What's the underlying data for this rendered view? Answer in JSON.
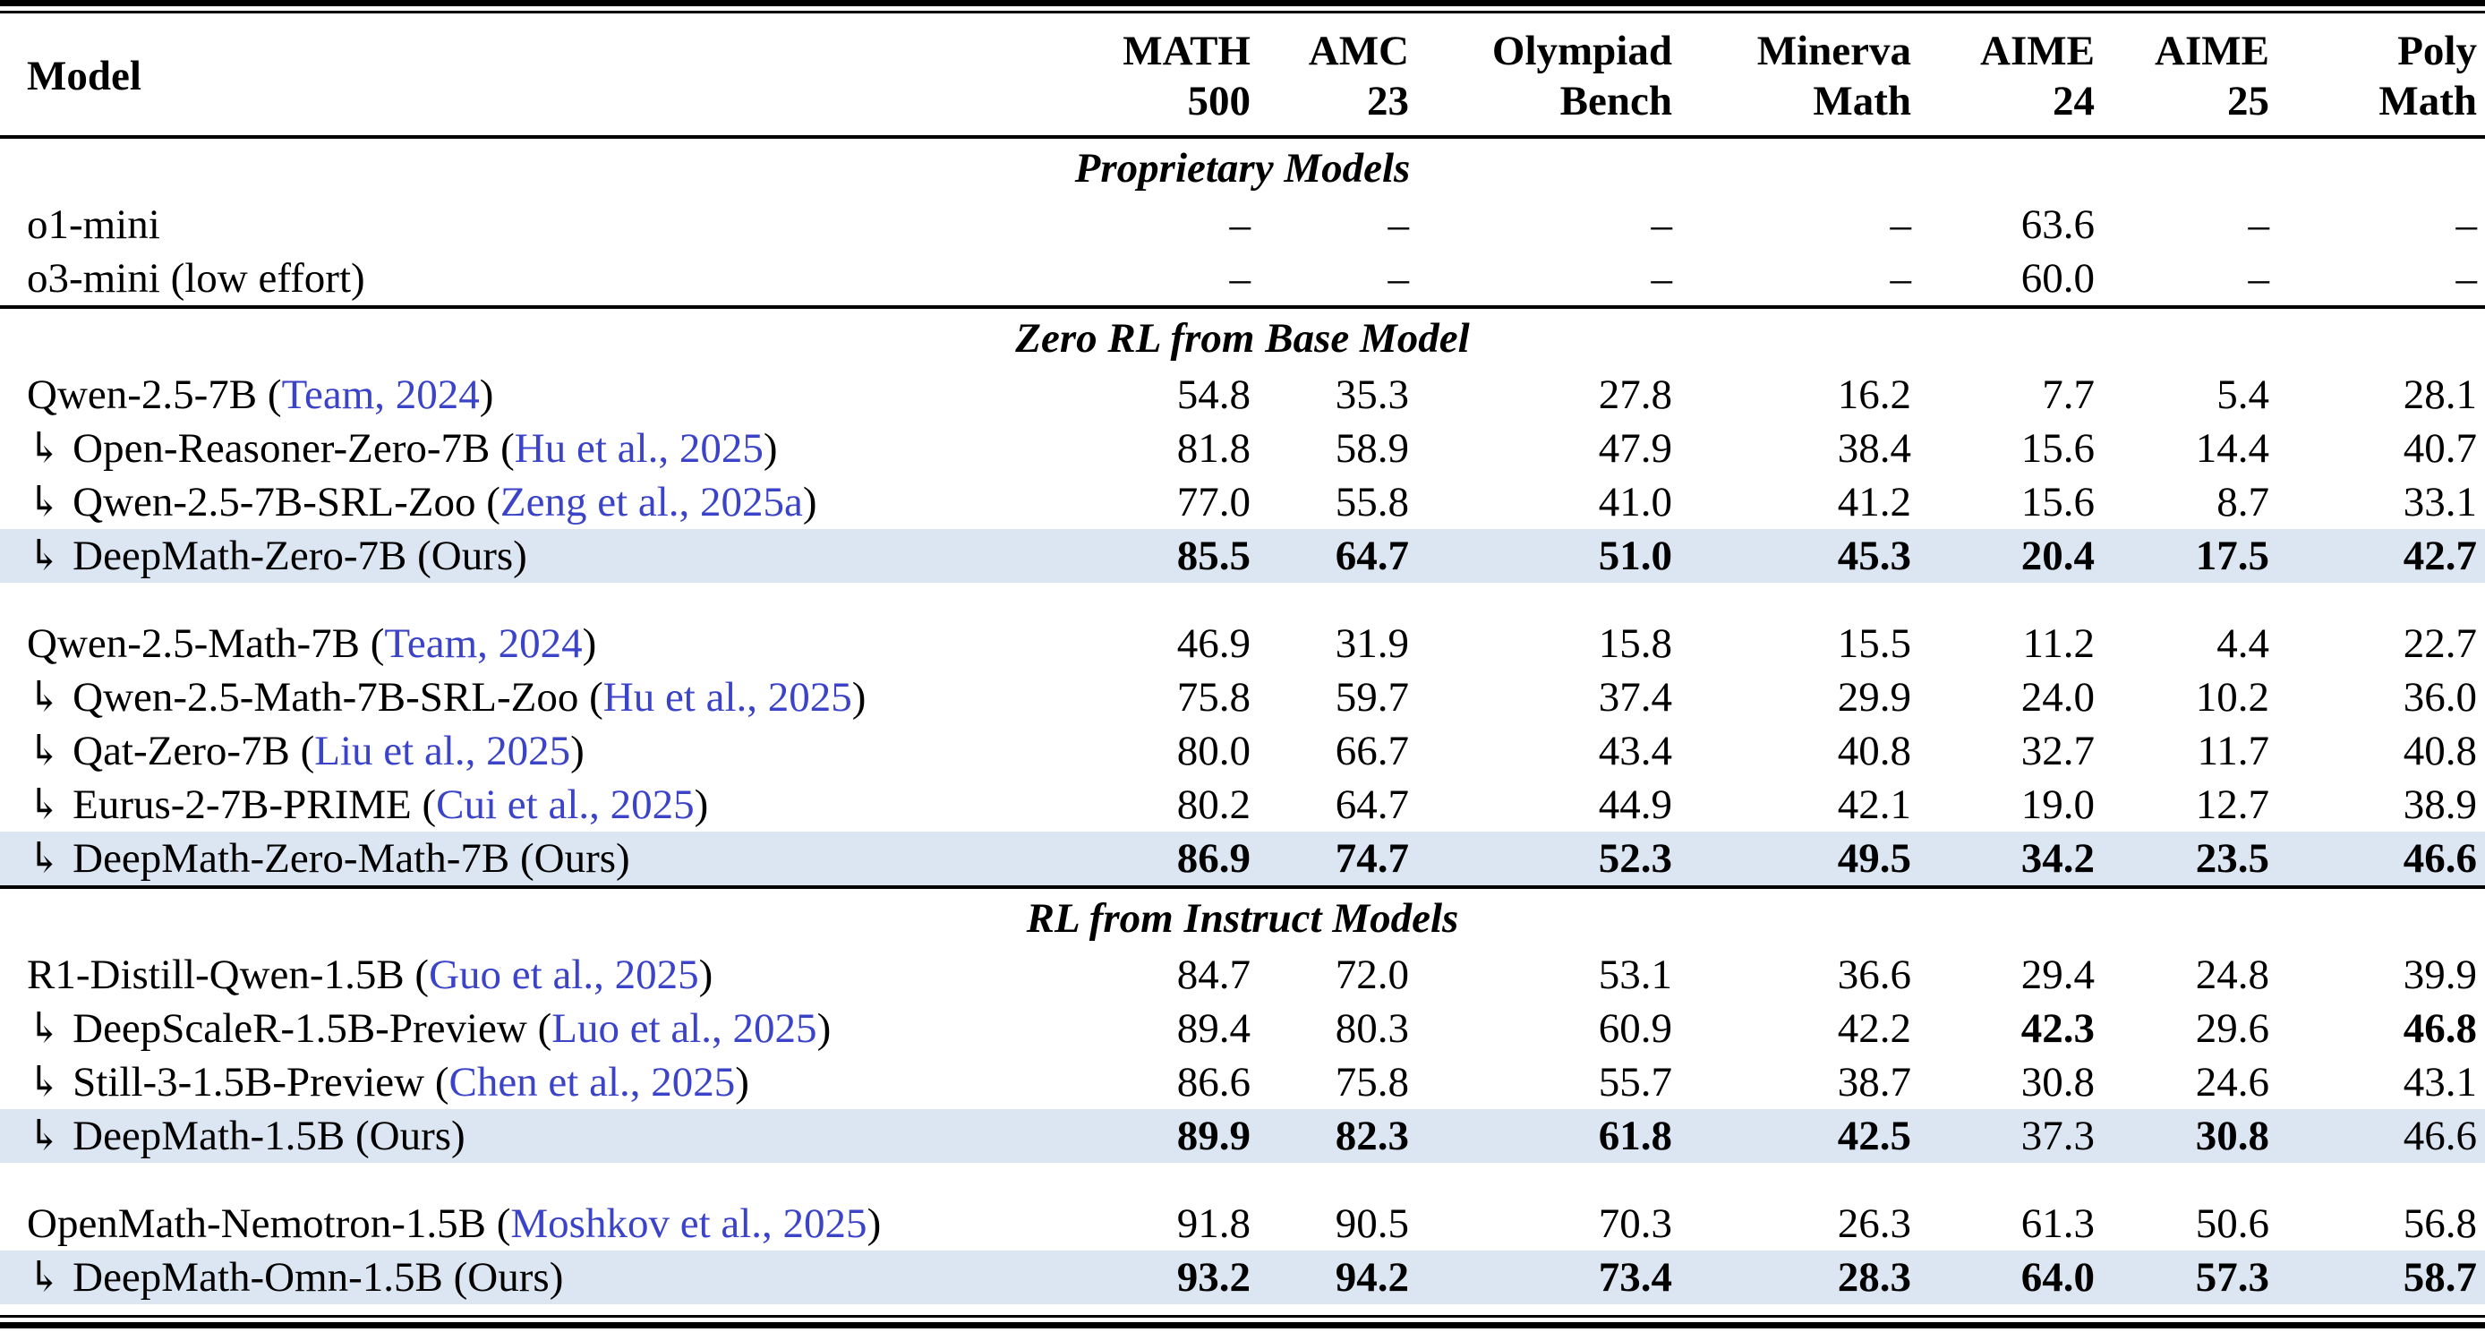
{
  "table": {
    "colors": {
      "citation": "#3b43c8",
      "highlight": "#dce6f2",
      "rule": "#000000"
    },
    "header": {
      "model": "Model",
      "cols": [
        {
          "l1": "MATH",
          "l2": "500"
        },
        {
          "l1": "AMC",
          "l2": "23"
        },
        {
          "l1": "Olympiad",
          "l2": "Bench"
        },
        {
          "l1": "Minerva",
          "l2": "Math"
        },
        {
          "l1": "AIME",
          "l2": "24"
        },
        {
          "l1": "AIME",
          "l2": "25"
        },
        {
          "l1": "Poly",
          "l2": "Math"
        }
      ]
    },
    "sections": [
      {
        "title": "Proprietary Models",
        "groups": [
          {
            "rows": [
              {
                "pre": "o1-mini",
                "cite": "",
                "post": "",
                "highlight": false,
                "values": [
                  "–",
                  "–",
                  "–",
                  "–",
                  "63.6",
                  "–",
                  "–"
                ],
                "bold": [
                  0,
                  0,
                  0,
                  0,
                  0,
                  0,
                  0
                ]
              },
              {
                "pre": "o3-mini (low effort)",
                "cite": "",
                "post": "",
                "highlight": false,
                "values": [
                  "–",
                  "–",
                  "–",
                  "–",
                  "60.0",
                  "–",
                  "–"
                ],
                "bold": [
                  0,
                  0,
                  0,
                  0,
                  0,
                  0,
                  0
                ]
              }
            ]
          }
        ]
      },
      {
        "title": "Zero RL from Base Model",
        "groups": [
          {
            "rows": [
              {
                "pre": "Qwen-2.5-7B (",
                "cite": "Team, 2024",
                "post": ")",
                "highlight": false,
                "values": [
                  "54.8",
                  "35.3",
                  "27.8",
                  "16.2",
                  "7.7",
                  "5.4",
                  "28.1"
                ],
                "bold": [
                  0,
                  0,
                  0,
                  0,
                  0,
                  0,
                  0
                ]
              },
              {
                "pre": "↳ Open-Reasoner-Zero-7B (",
                "cite": "Hu et al., 2025",
                "post": ")",
                "highlight": false,
                "values": [
                  "81.8",
                  "58.9",
                  "47.9",
                  "38.4",
                  "15.6",
                  "14.4",
                  "40.7"
                ],
                "bold": [
                  0,
                  0,
                  0,
                  0,
                  0,
                  0,
                  0
                ]
              },
              {
                "pre": "↳ Qwen-2.5-7B-SRL-Zoo (",
                "cite": "Zeng et al., 2025a",
                "post": ")",
                "highlight": false,
                "values": [
                  "77.0",
                  "55.8",
                  "41.0",
                  "41.2",
                  "15.6",
                  "8.7",
                  "33.1"
                ],
                "bold": [
                  0,
                  0,
                  0,
                  0,
                  0,
                  0,
                  0
                ]
              },
              {
                "pre": "↳ DeepMath-Zero-7B (Ours)",
                "cite": "",
                "post": "",
                "highlight": true,
                "values": [
                  "85.5",
                  "64.7",
                  "51.0",
                  "45.3",
                  "20.4",
                  "17.5",
                  "42.7"
                ],
                "bold": [
                  1,
                  1,
                  1,
                  1,
                  1,
                  1,
                  1
                ]
              }
            ]
          },
          {
            "rows": [
              {
                "pre": "Qwen-2.5-Math-7B (",
                "cite": "Team, 2024",
                "post": ")",
                "highlight": false,
                "values": [
                  "46.9",
                  "31.9",
                  "15.8",
                  "15.5",
                  "11.2",
                  "4.4",
                  "22.7"
                ],
                "bold": [
                  0,
                  0,
                  0,
                  0,
                  0,
                  0,
                  0
                ]
              },
              {
                "pre": "↳ Qwen-2.5-Math-7B-SRL-Zoo (",
                "cite": "Hu et al., 2025",
                "post": ")",
                "highlight": false,
                "values": [
                  "75.8",
                  "59.7",
                  "37.4",
                  "29.9",
                  "24.0",
                  "10.2",
                  "36.0"
                ],
                "bold": [
                  0,
                  0,
                  0,
                  0,
                  0,
                  0,
                  0
                ]
              },
              {
                "pre": "↳ Qat-Zero-7B (",
                "cite": "Liu et al., 2025",
                "post": ")",
                "highlight": false,
                "values": [
                  "80.0",
                  "66.7",
                  "43.4",
                  "40.8",
                  "32.7",
                  "11.7",
                  "40.8"
                ],
                "bold": [
                  0,
                  0,
                  0,
                  0,
                  0,
                  0,
                  0
                ]
              },
              {
                "pre": "↳ Eurus-2-7B-PRIME (",
                "cite": "Cui et al., 2025",
                "post": ")",
                "highlight": false,
                "values": [
                  "80.2",
                  "64.7",
                  "44.9",
                  "42.1",
                  "19.0",
                  "12.7",
                  "38.9"
                ],
                "bold": [
                  0,
                  0,
                  0,
                  0,
                  0,
                  0,
                  0
                ]
              },
              {
                "pre": "↳ DeepMath-Zero-Math-7B (Ours)",
                "cite": "",
                "post": "",
                "highlight": true,
                "values": [
                  "86.9",
                  "74.7",
                  "52.3",
                  "49.5",
                  "34.2",
                  "23.5",
                  "46.6"
                ],
                "bold": [
                  1,
                  1,
                  1,
                  1,
                  1,
                  1,
                  1
                ]
              }
            ]
          }
        ]
      },
      {
        "title": "RL from Instruct Models",
        "groups": [
          {
            "rows": [
              {
                "pre": "R1-Distill-Qwen-1.5B (",
                "cite": "Guo et al., 2025",
                "post": ")",
                "highlight": false,
                "values": [
                  "84.7",
                  "72.0",
                  "53.1",
                  "36.6",
                  "29.4",
                  "24.8",
                  "39.9"
                ],
                "bold": [
                  0,
                  0,
                  0,
                  0,
                  0,
                  0,
                  0
                ]
              },
              {
                "pre": "↳ DeepScaleR-1.5B-Preview (",
                "cite": "Luo et al., 2025",
                "post": ")",
                "highlight": false,
                "values": [
                  "89.4",
                  "80.3",
                  "60.9",
                  "42.2",
                  "42.3",
                  "29.6",
                  "46.8"
                ],
                "bold": [
                  0,
                  0,
                  0,
                  0,
                  1,
                  0,
                  1
                ]
              },
              {
                "pre": "↳ Still-3-1.5B-Preview (",
                "cite": "Chen et al., 2025",
                "post": ")",
                "highlight": false,
                "values": [
                  "86.6",
                  "75.8",
                  "55.7",
                  "38.7",
                  "30.8",
                  "24.6",
                  "43.1"
                ],
                "bold": [
                  0,
                  0,
                  0,
                  0,
                  0,
                  0,
                  0
                ]
              },
              {
                "pre": "↳ DeepMath-1.5B (Ours)",
                "cite": "",
                "post": "",
                "highlight": true,
                "values": [
                  "89.9",
                  "82.3",
                  "61.8",
                  "42.5",
                  "37.3",
                  "30.8",
                  "46.6"
                ],
                "bold": [
                  1,
                  1,
                  1,
                  1,
                  0,
                  1,
                  0
                ]
              }
            ]
          },
          {
            "rows": [
              {
                "pre": "OpenMath-Nemotron-1.5B (",
                "cite": "Moshkov et al., 2025",
                "post": ")",
                "highlight": false,
                "values": [
                  "91.8",
                  "90.5",
                  "70.3",
                  "26.3",
                  "61.3",
                  "50.6",
                  "56.8"
                ],
                "bold": [
                  0,
                  0,
                  0,
                  0,
                  0,
                  0,
                  0
                ]
              },
              {
                "pre": "↳ DeepMath-Omn-1.5B (Ours)",
                "cite": "",
                "post": "",
                "highlight": true,
                "values": [
                  "93.2",
                  "94.2",
                  "73.4",
                  "28.3",
                  "64.0",
                  "57.3",
                  "58.7"
                ],
                "bold": [
                  1,
                  1,
                  1,
                  1,
                  1,
                  1,
                  1
                ]
              }
            ]
          }
        ]
      }
    ]
  }
}
